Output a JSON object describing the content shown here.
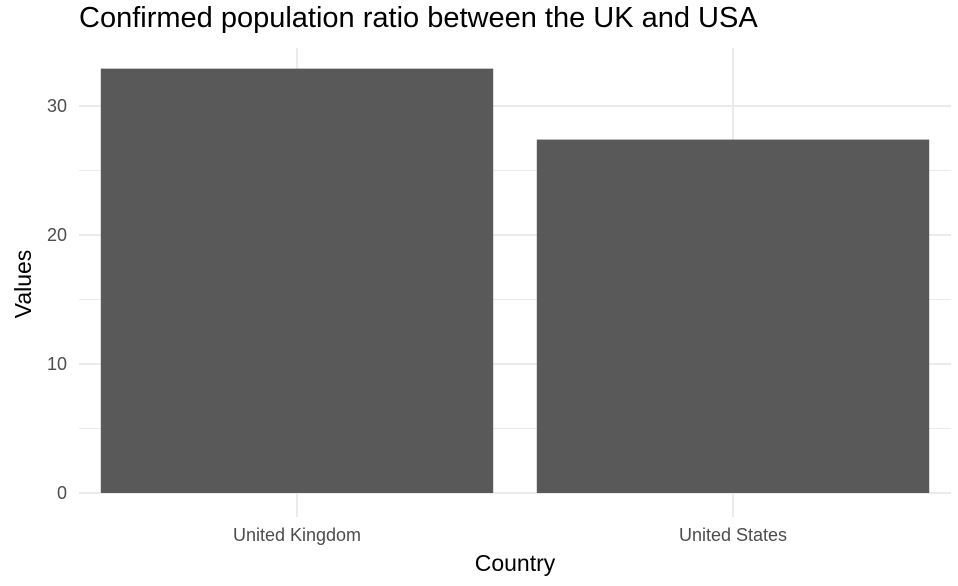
{
  "chart_data": {
    "type": "bar",
    "title": "Confirmed population ratio between the UK and USA",
    "xlabel": "Country",
    "ylabel": "Values",
    "categories": [
      "United Kingdom",
      "United States"
    ],
    "values": [
      32.9,
      27.4
    ],
    "ylim": [
      0,
      34.5
    ],
    "yticks": [
      0,
      10,
      20,
      30
    ],
    "bar_color": "#595959",
    "grid": true,
    "grid_color": "#ebebeb",
    "legend": "none"
  }
}
